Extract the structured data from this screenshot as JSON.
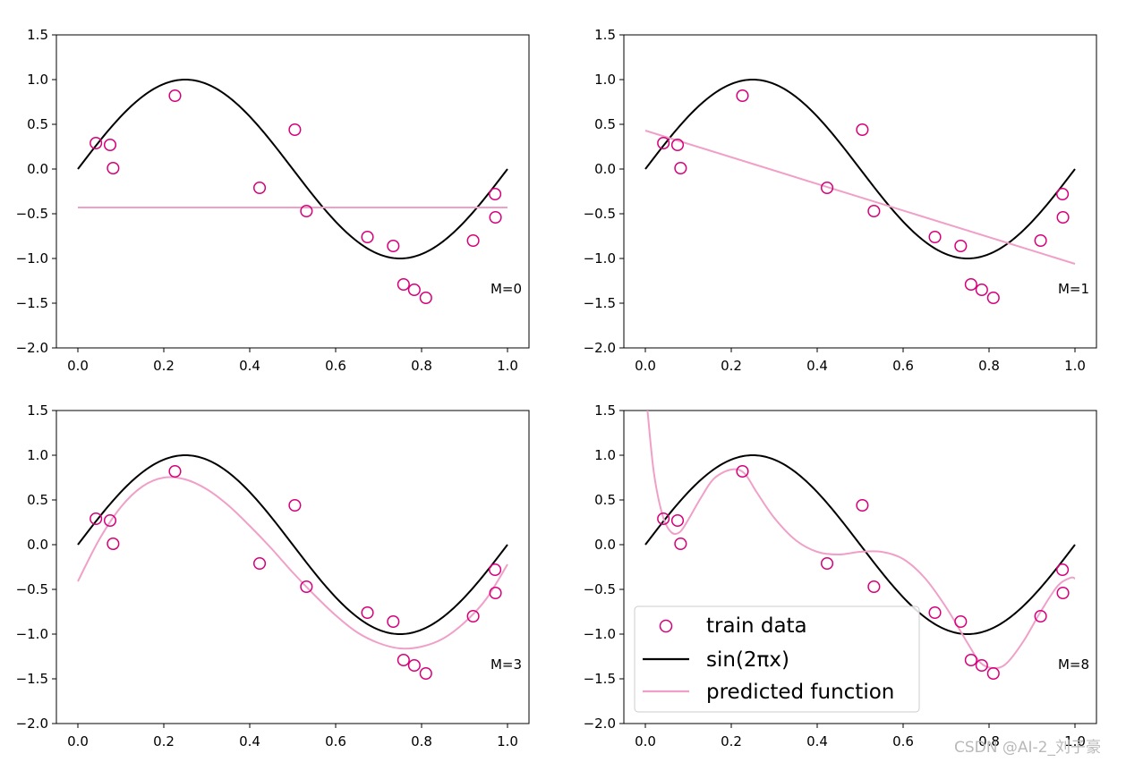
{
  "chart_data": [
    {
      "type": "line",
      "panel": "M=0",
      "annotation": "M=0",
      "xlim": [
        -0.05,
        1.05
      ],
      "ylim": [
        -2.0,
        1.5
      ],
      "xticks": [
        "0.0",
        "0.2",
        "0.4",
        "0.6",
        "0.8",
        "1.0"
      ],
      "yticks": [
        "−2.0",
        "−1.5",
        "−1.0",
        "−0.5",
        "0.0",
        "0.5",
        "1.0",
        "1.5"
      ],
      "train_data": {
        "x": [
          0.042,
          0.075,
          0.082,
          0.226,
          0.423,
          0.505,
          0.532,
          0.674,
          0.734,
          0.758,
          0.783,
          0.81,
          0.92,
          0.971,
          0.972
        ],
        "y": [
          0.29,
          0.27,
          0.01,
          0.82,
          -0.21,
          0.44,
          -0.47,
          -0.76,
          -0.86,
          -1.29,
          -1.35,
          -1.44,
          -0.8,
          -0.28,
          -0.54
        ]
      },
      "predicted": {
        "x": [
          0,
          1
        ],
        "y": [
          -0.43,
          -0.43
        ]
      }
    },
    {
      "type": "line",
      "panel": "M=1",
      "annotation": "M=1",
      "xlim": [
        -0.05,
        1.05
      ],
      "ylim": [
        -2.0,
        1.5
      ],
      "xticks": [
        "0.0",
        "0.2",
        "0.4",
        "0.6",
        "0.8",
        "1.0"
      ],
      "yticks": [
        "−2.0",
        "−1.5",
        "−1.0",
        "−0.5",
        "0.0",
        "0.5",
        "1.0",
        "1.5"
      ],
      "train_data": {
        "x": [
          0.042,
          0.075,
          0.082,
          0.226,
          0.423,
          0.505,
          0.532,
          0.674,
          0.734,
          0.758,
          0.783,
          0.81,
          0.92,
          0.971,
          0.972
        ],
        "y": [
          0.29,
          0.27,
          0.01,
          0.82,
          -0.21,
          0.44,
          -0.47,
          -0.76,
          -0.86,
          -1.29,
          -1.35,
          -1.44,
          -0.8,
          -0.28,
          -0.54
        ]
      },
      "predicted": {
        "x": [
          0,
          1
        ],
        "y": [
          0.43,
          -1.06
        ]
      }
    },
    {
      "type": "line",
      "panel": "M=3",
      "annotation": "M=3",
      "xlim": [
        -0.05,
        1.05
      ],
      "ylim": [
        -2.0,
        1.5
      ],
      "xticks": [
        "0.0",
        "0.2",
        "0.4",
        "0.6",
        "0.8",
        "1.0"
      ],
      "yticks": [
        "−2.0",
        "−1.5",
        "−1.0",
        "−0.5",
        "0.0",
        "0.5",
        "1.0",
        "1.5"
      ],
      "train_data": {
        "x": [
          0.042,
          0.075,
          0.082,
          0.226,
          0.423,
          0.505,
          0.532,
          0.674,
          0.734,
          0.758,
          0.783,
          0.81,
          0.92,
          0.971,
          0.972
        ],
        "y": [
          0.29,
          0.27,
          0.01,
          0.82,
          -0.21,
          0.44,
          -0.47,
          -0.76,
          -0.86,
          -1.29,
          -1.35,
          -1.44,
          -0.8,
          -0.28,
          -0.54
        ]
      },
      "predicted": {
        "x": [
          0,
          0.05,
          0.1,
          0.15,
          0.2,
          0.25,
          0.3,
          0.35,
          0.4,
          0.45,
          0.5,
          0.55,
          0.6,
          0.65,
          0.7,
          0.75,
          0.8,
          0.85,
          0.9,
          0.95,
          1.0
        ],
        "y": [
          -0.41,
          0.06,
          0.42,
          0.65,
          0.75,
          0.73,
          0.62,
          0.44,
          0.21,
          -0.04,
          -0.31,
          -0.56,
          -0.79,
          -0.98,
          -1.1,
          -1.16,
          -1.14,
          -1.05,
          -0.87,
          -0.61,
          -0.22
        ]
      }
    },
    {
      "type": "line",
      "panel": "M=8",
      "annotation": "M=8",
      "xlim": [
        -0.05,
        1.05
      ],
      "ylim": [
        -2.0,
        1.5
      ],
      "xticks": [
        "0.0",
        "0.2",
        "0.4",
        "0.6",
        "0.8",
        "1.0"
      ],
      "yticks": [
        "−2.0",
        "−1.5",
        "−1.0",
        "−0.5",
        "0.0",
        "0.5",
        "1.0",
        "1.5"
      ],
      "train_data": {
        "x": [
          0.042,
          0.075,
          0.082,
          0.226,
          0.423,
          0.505,
          0.532,
          0.674,
          0.734,
          0.758,
          0.783,
          0.81,
          0.92,
          0.971,
          0.972
        ],
        "y": [
          0.29,
          0.27,
          0.01,
          0.82,
          -0.21,
          0.44,
          -0.47,
          -0.76,
          -0.86,
          -1.29,
          -1.35,
          -1.44,
          -0.8,
          -0.28,
          -0.54
        ]
      },
      "predicted": {
        "x": [
          0.005,
          0.02,
          0.04,
          0.06,
          0.08,
          0.1,
          0.13,
          0.16,
          0.2,
          0.23,
          0.26,
          0.3,
          0.35,
          0.4,
          0.45,
          0.5,
          0.55,
          0.6,
          0.65,
          0.7,
          0.75,
          0.78,
          0.81,
          0.84,
          0.88,
          0.92,
          0.96,
          0.99,
          1.0
        ],
        "y": [
          1.5,
          0.8,
          0.33,
          0.14,
          0.14,
          0.28,
          0.53,
          0.74,
          0.84,
          0.8,
          0.58,
          0.3,
          0.05,
          -0.08,
          -0.11,
          -0.08,
          -0.08,
          -0.16,
          -0.37,
          -0.7,
          -1.1,
          -1.32,
          -1.38,
          -1.33,
          -1.08,
          -0.75,
          -0.46,
          -0.37,
          -0.38
        ]
      },
      "legend": {
        "position": "lower-left",
        "entries": [
          "train data",
          "sin(2πx)",
          "predicted function"
        ]
      }
    }
  ],
  "true_function": "sin(2πx)",
  "colors": {
    "train_marker": "#d6007b",
    "true_curve": "#000000",
    "predicted": "#f0a0c8"
  },
  "watermark": "CSDN @AI-2_刘子豪"
}
